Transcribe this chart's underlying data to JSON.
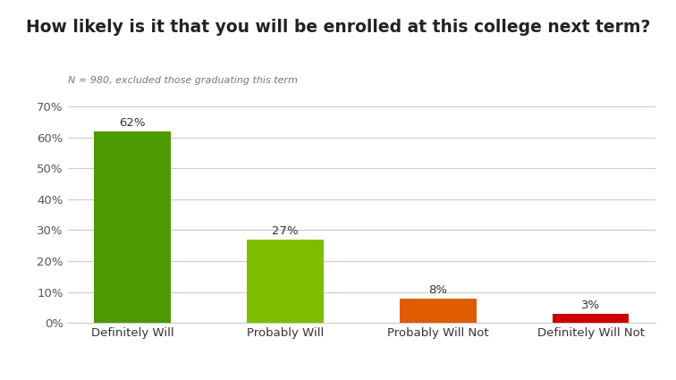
{
  "title": "How likely is it that you will be enrolled at this college next term?",
  "subtitle": "N = 980, excluded those graduating this term",
  "categories": [
    "Definitely Will",
    "Probably Will",
    "Probably Will Not",
    "Definitely Will Not"
  ],
  "values": [
    62,
    27,
    8,
    3
  ],
  "labels": [
    "62%",
    "27%",
    "8%",
    "3%"
  ],
  "bar_colors": [
    "#4d9900",
    "#7dbf00",
    "#e05c00",
    "#cc0000"
  ],
  "background_color": "#ffffff",
  "ylim": [
    0,
    70
  ],
  "yticks": [
    0,
    10,
    20,
    30,
    40,
    50,
    60,
    70
  ],
  "ytick_labels": [
    "0%",
    "10%",
    "20%",
    "30%",
    "40%",
    "50%",
    "60%",
    "70%"
  ],
  "title_fontsize": 13.5,
  "subtitle_fontsize": 8,
  "label_fontsize": 9.5,
  "tick_fontsize": 9.5,
  "grid_color": "#cccccc",
  "bar_width": 0.5
}
